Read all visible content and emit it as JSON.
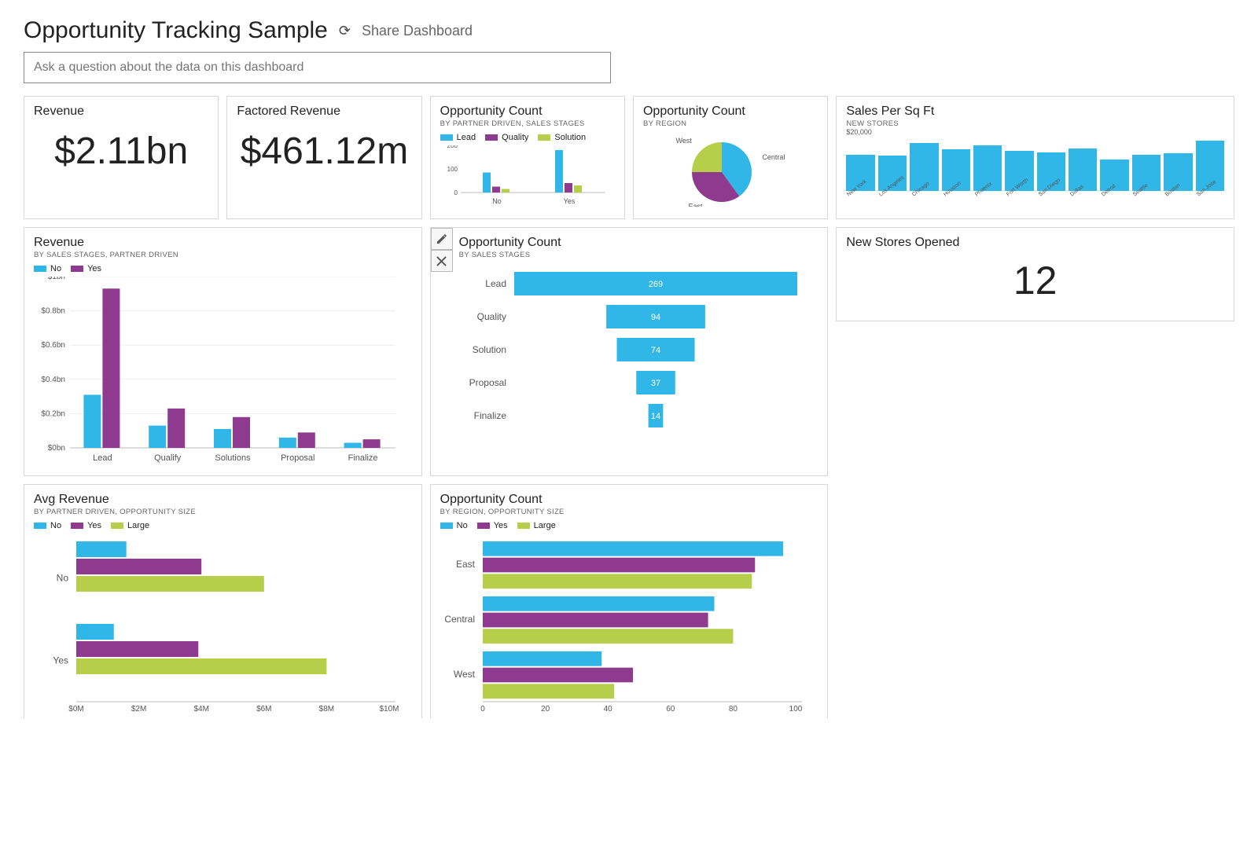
{
  "header": {
    "title": "Opportunity Tracking Sample",
    "share_label": "Share Dashboard"
  },
  "qna": {
    "placeholder": "Ask a question about the data on this dashboard"
  },
  "colors": {
    "blue": "#31b6e8",
    "purple": "#8e3a8e",
    "green": "#b6ce4a",
    "tile_border": "#d8d8d8",
    "axis": "#bdbdbd",
    "text_muted": "#666666"
  },
  "tiles": {
    "revenue_card": {
      "title": "Revenue",
      "value": "$2.11bn"
    },
    "factored_card": {
      "title": "Factored Revenue",
      "value": "$461.12m"
    },
    "oppcount_partner": {
      "title": "Opportunity Count",
      "sub": "BY PARTNER DRIVEN, SALES STAGES",
      "type": "grouped-bar",
      "legend": [
        "Lead",
        "Quality",
        "Solution"
      ],
      "legend_colors": [
        "#31b6e8",
        "#8e3a8e",
        "#b6ce4a"
      ],
      "groups": [
        "No",
        "Yes"
      ],
      "series": {
        "Lead": [
          85,
          180
        ],
        "Quality": [
          25,
          40
        ],
        "Solution": [
          15,
          30
        ]
      },
      "yticks": [
        0,
        100,
        200
      ],
      "ymax": 200
    },
    "oppcount_region": {
      "title": "Opportunity Count",
      "sub": "BY REGION",
      "type": "pie",
      "slices": [
        {
          "label": "Central",
          "value": 40,
          "color": "#31b6e8"
        },
        {
          "label": "East",
          "value": 35,
          "color": "#8e3a8e"
        },
        {
          "label": "West",
          "value": 25,
          "color": "#b6ce4a"
        }
      ]
    },
    "sales_sqft": {
      "title": "Sales Per Sq Ft",
      "sub": "NEW STORES",
      "type": "bar",
      "ylabel": "$20,000",
      "categories": [
        "New York",
        "Los Angeles",
        "Chicago",
        "Houston",
        "Phoenix",
        "Fort Worth",
        "San Diego",
        "Dallas",
        "Detroit",
        "Seattle",
        "Boston",
        "San Jose"
      ],
      "values": [
        14000,
        13500,
        18500,
        16000,
        17500,
        15500,
        15000,
        16500,
        12000,
        14000,
        14500,
        19500
      ],
      "bar_color": "#31b6e8",
      "ymax": 20000
    },
    "new_stores": {
      "title": "New Stores Opened",
      "value": "12"
    },
    "revenue_by_stage": {
      "title": "Revenue",
      "sub": "BY SALES STAGES, PARTNER DRIVEN",
      "type": "grouped-column",
      "legend": [
        "No",
        "Yes"
      ],
      "legend_colors": [
        "#31b6e8",
        "#8e3a8e"
      ],
      "categories": [
        "Lead",
        "Qualify",
        "Solutions",
        "Proposal",
        "Finalize"
      ],
      "series": {
        "No": [
          0.31,
          0.13,
          0.11,
          0.06,
          0.03
        ],
        "Yes": [
          0.93,
          0.23,
          0.18,
          0.09,
          0.05
        ]
      },
      "yticks": [
        "$0bn",
        "$0.2bn",
        "$0.4bn",
        "$0.6bn",
        "$0.8bn",
        "$1bn"
      ],
      "ymax": 1.0
    },
    "funnel": {
      "title": "Opportunity Count",
      "sub": "BY SALES STAGES",
      "type": "funnel",
      "stages": [
        {
          "label": "Lead",
          "value": 269
        },
        {
          "label": "Quality",
          "value": 94
        },
        {
          "label": "Solution",
          "value": 74
        },
        {
          "label": "Proposal",
          "value": 37
        },
        {
          "label": "Finalize",
          "value": 14
        }
      ],
      "bar_color": "#31b6e8",
      "max": 269
    },
    "avg_revenue": {
      "title": "Avg Revenue",
      "sub": "BY PARTNER DRIVEN, OPPORTUNITY SIZE",
      "type": "grouped-hbar",
      "legend": [
        "No",
        "Yes",
        "Large"
      ],
      "legend_colors": [
        "#31b6e8",
        "#8e3a8e",
        "#b6ce4a"
      ],
      "groups": [
        "No",
        "Yes"
      ],
      "series": {
        "No": [
          1.6,
          1.2
        ],
        "Yes": [
          4.0,
          3.9
        ],
        "Large": [
          6.0,
          8.0
        ]
      },
      "xticks": [
        "$0M",
        "$2M",
        "$4M",
        "$6M",
        "$8M",
        "$10M"
      ],
      "xmax": 10
    },
    "oppcount_region_size": {
      "title": "Opportunity Count",
      "sub": "BY REGION, OPPORTUNITY SIZE",
      "type": "grouped-hbar",
      "legend": [
        "No",
        "Yes",
        "Large"
      ],
      "legend_colors": [
        "#31b6e8",
        "#8e3a8e",
        "#b6ce4a"
      ],
      "groups": [
        "East",
        "Central",
        "West"
      ],
      "series": {
        "No": [
          96,
          74,
          38
        ],
        "Yes": [
          87,
          72,
          48
        ],
        "Large": [
          86,
          80,
          42
        ]
      },
      "xticks": [
        "0",
        "20",
        "40",
        "60",
        "80",
        "100"
      ],
      "xmax": 100
    }
  }
}
